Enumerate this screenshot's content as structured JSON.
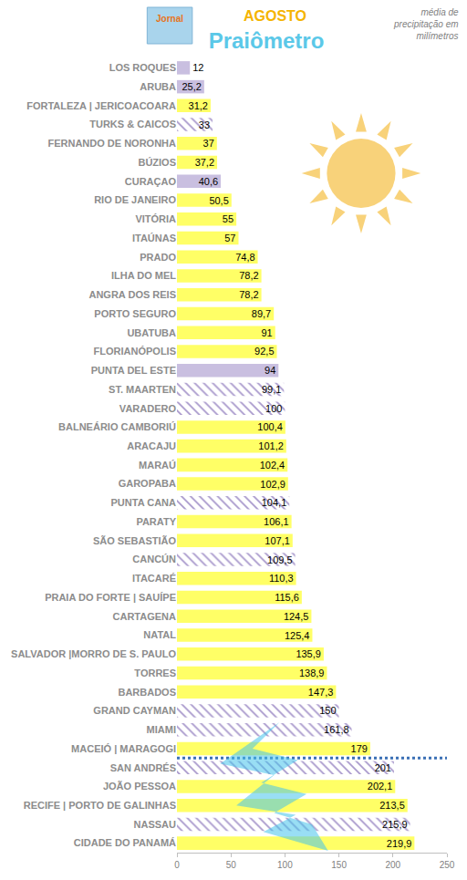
{
  "chart_data": {
    "type": "bar",
    "orientation": "horizontal",
    "title": "Praiômetro",
    "subtitle": "AGOSTO",
    "annotations": [
      {
        "text": "média de precipitação em milímetros"
      },
      {
        "text": "Jornal"
      }
    ],
    "categories": [
      "LOS ROQUES",
      "ARUBA",
      "FORTALEZA | JERICOACOARA",
      "TURKS & CAICOS",
      "FERNANDO DE NORONHA",
      "BÚZIOS",
      "CURAÇAO",
      "RIO DE JANEIRO",
      "VITÓRIA",
      "ITAÚNAS",
      "PRADO",
      "ILHA DO MEL",
      "ANGRA DOS REIS",
      "PORTO SEGURO",
      "UBATUBA",
      "FLORIANÓPOLIS",
      "PUNTA DEL ESTE",
      "ST. MAARTEN",
      "VARADERO",
      "BALNEÁRIO CAMBORIÚ",
      "ARACAJU",
      "MARAÚ",
      "GAROPABA",
      "PUNTA CANA",
      "PARATY",
      "SÃO SEBASTIÃO",
      "CANCÚN",
      "ITACARÉ",
      "PRAIA DO FORTE | SAUÍPE",
      "CARTAGENA",
      "NATAL",
      "SALVADOR |MORRO DE S. PAULO",
      "TORRES",
      "BARBADOS",
      "GRAND CAYMAN",
      "MIAMI",
      "MACEIÓ | MARAGOGI",
      "SAN ANDRÉS",
      "JOÃO PESSOA",
      "RECIFE | PORTO DE GALINHAS",
      "NASSAU",
      "CIDADE DO PANAMÁ"
    ],
    "series": [
      {
        "color": "#ffff66",
        "marker": "solid",
        "values": [
          null,
          null,
          31.2,
          null,
          37,
          37.2,
          null,
          50.5,
          55,
          57,
          74.8,
          78.2,
          78.2,
          89.7,
          91,
          92.5,
          null,
          null,
          null,
          100.4,
          101.2,
          102.4,
          102.9,
          null,
          106.1,
          107.1,
          null,
          110.3,
          115.6,
          124.5,
          125.4,
          135.9,
          138.9,
          147.3,
          null,
          null,
          179,
          null,
          202.1,
          213.5,
          null,
          219.9
        ],
        "value_labels": [
          null,
          null,
          "31,2",
          null,
          "37",
          "37,2",
          null,
          "50,5",
          "55",
          "57",
          "74,8",
          "78,2",
          "78,2",
          "89,7",
          "91",
          "92,5",
          null,
          null,
          null,
          "100,4",
          "101,2",
          "102,4",
          "102,9",
          null,
          "106,1",
          "107,1",
          null,
          "110,3",
          "115,6",
          "124,5",
          "125,4",
          "135,9",
          "138,9",
          "147,3",
          null,
          null,
          "179",
          null,
          "202,1",
          "213,5",
          null,
          "219,9"
        ]
      },
      {
        "color": "#c9bfe0",
        "marker": "solid",
        "values": [
          12,
          25.2,
          null,
          null,
          null,
          null,
          40.6,
          null,
          null,
          null,
          null,
          null,
          null,
          null,
          null,
          null,
          94,
          null,
          null,
          null,
          null,
          null,
          null,
          null,
          null,
          null,
          null,
          null,
          null,
          null,
          null,
          null,
          null,
          null,
          null,
          null,
          null,
          null,
          null,
          null,
          null,
          null
        ],
        "value_labels": [
          "12",
          "25,2",
          null,
          null,
          null,
          null,
          "40,6",
          null,
          null,
          null,
          null,
          null,
          null,
          null,
          null,
          null,
          "94",
          null,
          null,
          null,
          null,
          null,
          null,
          null,
          null,
          null,
          null,
          null,
          null,
          null,
          null,
          null,
          null,
          null,
          null,
          null,
          null,
          null,
          null,
          null,
          null,
          null
        ]
      },
      {
        "color": "#a898cc",
        "marker": "hatched",
        "values": [
          null,
          null,
          null,
          33,
          null,
          null,
          null,
          null,
          null,
          null,
          null,
          null,
          null,
          null,
          null,
          null,
          null,
          99.1,
          100,
          null,
          null,
          null,
          null,
          104.1,
          null,
          null,
          109.5,
          null,
          null,
          null,
          null,
          null,
          null,
          null,
          150,
          161.8,
          null,
          201,
          null,
          null,
          215.9,
          null
        ],
        "value_labels": [
          null,
          null,
          null,
          "33",
          null,
          null,
          null,
          null,
          null,
          null,
          null,
          null,
          null,
          null,
          null,
          null,
          null,
          "99,1",
          "100",
          null,
          null,
          null,
          null,
          "104,1",
          null,
          null,
          "109,5",
          null,
          null,
          null,
          null,
          null,
          null,
          null,
          "150",
          "161,8",
          null,
          "201",
          null,
          null,
          "215,9",
          null
        ]
      }
    ],
    "xlim": [
      0,
      250
    ],
    "xticks": [
      0,
      50,
      100,
      150,
      200,
      250
    ],
    "grid": false,
    "data_labels": true
  }
}
